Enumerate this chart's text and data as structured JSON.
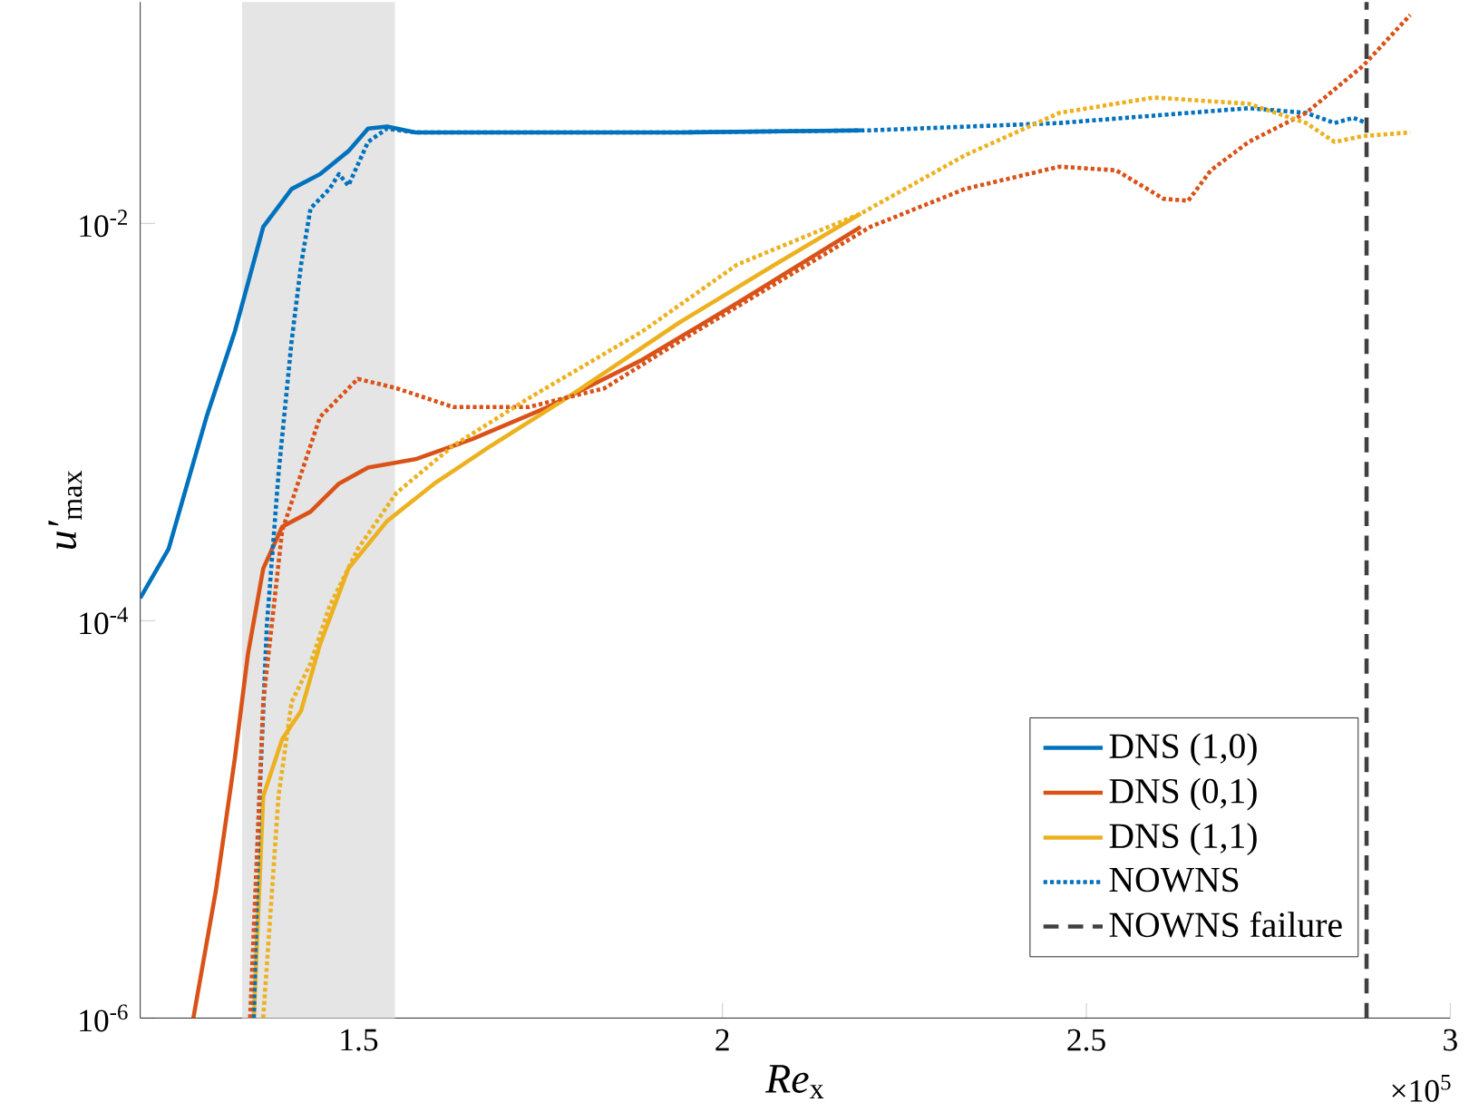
{
  "chart_data": {
    "type": "line",
    "xlabel": "*Re*$_{x}$",
    "ylabel": "*u′*$_{max}$",
    "log": "y",
    "xlim": [
      1.2,
      3
    ],
    "ylim": [
      1e-06,
      0.13
    ],
    "xticks": [
      1.5,
      2,
      2.5,
      3
    ],
    "yticks": [
      {
        "value": 1e-06,
        "label": "10$^{-6}$"
      },
      {
        "value": 0.0001,
        "label": "10$^{-4}$"
      },
      {
        "value": 0.01,
        "label": "10$^{-2}$"
      }
    ],
    "legend": "bottom right",
    "annotations": [
      "×10$^{5}$"
    ],
    "bands": [
      {
        "axis": "x",
        "from": 1.34,
        "to": 1.55,
        "color": "#e5e5e5"
      }
    ],
    "ref_lines": [
      {
        "axis": "x",
        "value": 2.885,
        "label": "NOWNS failure",
        "color": "#404040",
        "line_style": "dashed"
      }
    ],
    "series": [
      {
        "name": "DNS (1,0)",
        "color": "#0072bd",
        "line_style": "solid",
        "x": [
          1.2,
          1.239,
          1.291,
          1.33,
          1.369,
          1.408,
          1.447,
          1.486,
          1.513,
          1.539,
          1.578,
          1.682,
          1.942,
          2.19
        ],
        "values": [
          0.00013,
          0.00023,
          0.00106,
          0.00286,
          0.0096,
          0.0149,
          0.0177,
          0.0231,
          0.03,
          0.0307,
          0.0287,
          0.0287,
          0.0287,
          0.0294
        ]
      },
      {
        "name": "DNS (0,1)",
        "color": "#d95319",
        "line_style": "solid",
        "x": [
          1.273,
          1.304,
          1.33,
          1.348,
          1.369,
          1.395,
          1.434,
          1.473,
          1.513,
          1.578,
          1.656,
          1.76,
          1.89,
          2.02,
          2.19
        ],
        "values": [
          1e-06,
          4.4e-06,
          2.03e-05,
          6.8e-05,
          0.000183,
          0.000297,
          0.000354,
          0.00049,
          0.00059,
          0.00065,
          0.00082,
          0.00119,
          0.00206,
          0.00397,
          0.0096
        ]
      },
      {
        "name": "DNS (1,1)",
        "color": "#edb120",
        "line_style": "solid",
        "x": [
          1.356,
          1.369,
          1.395,
          1.421,
          1.447,
          1.486,
          1.539,
          1.604,
          1.682,
          1.786,
          1.942,
          2.072,
          2.19
        ],
        "values": [
          1e-06,
          1.31e-05,
          2.53e-05,
          3.52e-05,
          7.6e-05,
          0.000183,
          0.000317,
          0.00049,
          0.00076,
          0.00132,
          0.00319,
          0.0062,
          0.0112
        ]
      },
      {
        "name": "NOWNS",
        "color": "#0072bd",
        "line_style": "dotted",
        "x": [
          1.356,
          1.364,
          1.374,
          1.39,
          1.408,
          1.421,
          1.434,
          1.46,
          1.473,
          1.486,
          1.513,
          1.539,
          1.578,
          1.942,
          2.203,
          2.463,
          2.723,
          2.802,
          2.841,
          2.867,
          2.885
        ],
        "values": [
          1e-06,
          1.31e-05,
          9.5e-05,
          0.00055,
          0.00256,
          0.0062,
          0.0119,
          0.0149,
          0.0177,
          0.0155,
          0.0257,
          0.03,
          0.0287,
          0.0287,
          0.0294,
          0.032,
          0.038,
          0.036,
          0.032,
          0.034,
          0.032
        ]
      },
      {
        "color": "#d95319",
        "line_style": "dotted",
        "x": [
          1.351,
          1.369,
          1.395,
          1.447,
          1.499,
          1.552,
          1.63,
          1.734,
          1.838,
          1.942,
          2.072,
          2.203,
          2.333,
          2.463,
          2.541,
          2.606,
          2.64,
          2.671,
          2.723,
          2.802,
          2.88,
          2.945
        ],
        "values": [
          1e-06,
          3.9e-05,
          0.000284,
          0.00106,
          0.00165,
          0.00148,
          0.00119,
          0.00119,
          0.00148,
          0.00256,
          0.00495,
          0.0096,
          0.0149,
          0.0193,
          0.0185,
          0.0133,
          0.013,
          0.0185,
          0.0257,
          0.036,
          0.062,
          0.112
        ]
      },
      {
        "color": "#edb120",
        "line_style": "dotted",
        "x": [
          1.369,
          1.39,
          1.408,
          1.434,
          1.46,
          1.499,
          1.552,
          1.63,
          1.734,
          1.89,
          2.02,
          2.19,
          2.333,
          2.463,
          2.593,
          2.723,
          2.802,
          2.841,
          2.88,
          2.945
        ],
        "values": [
          1e-06,
          1.31e-05,
          3.9e-05,
          6.1e-05,
          0.000118,
          0.00023,
          0.00044,
          0.00076,
          0.00132,
          0.00286,
          0.0062,
          0.0112,
          0.022,
          0.036,
          0.043,
          0.04,
          0.032,
          0.0257,
          0.0275,
          0.0287
        ]
      }
    ]
  }
}
